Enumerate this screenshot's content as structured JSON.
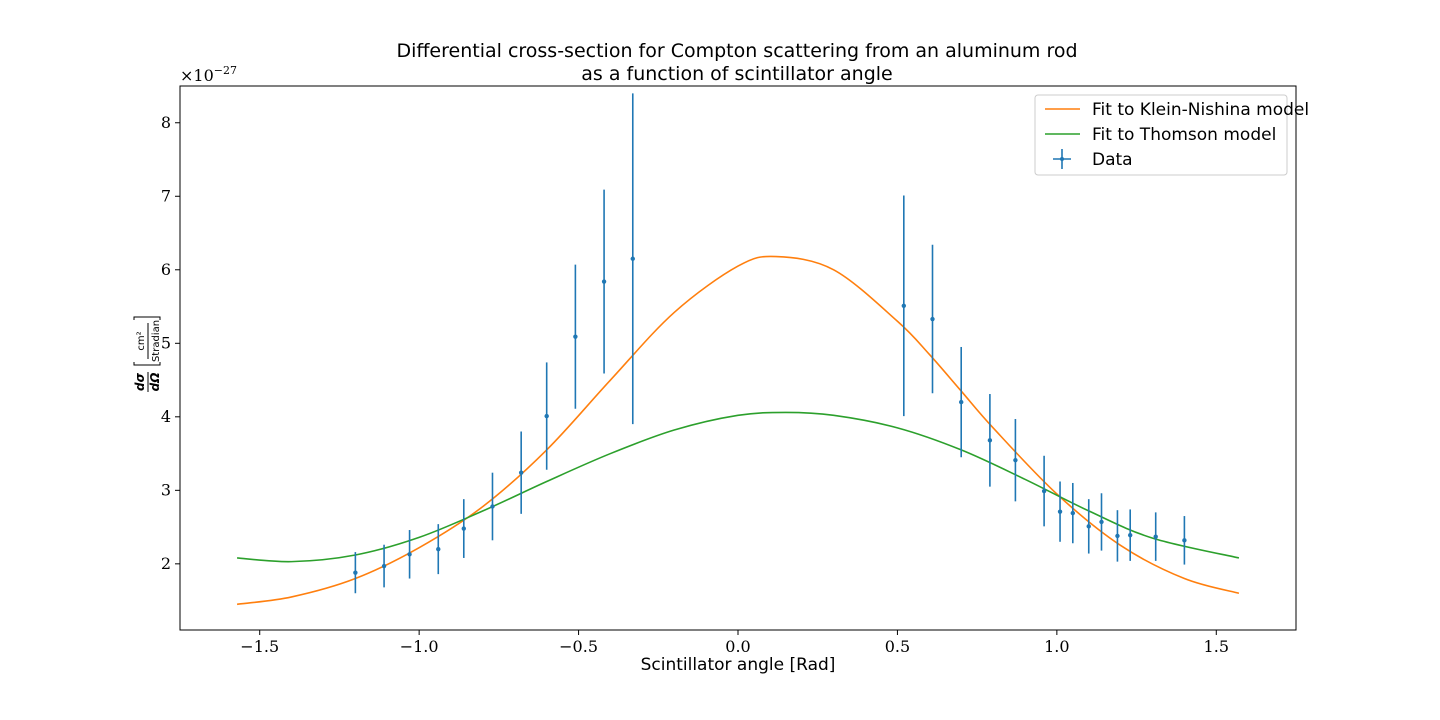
{
  "chart_data": {
    "type": "scatter",
    "title_line1": "Differential cross-section for Compton scattering from an aluminum rod",
    "title_line2": "as a function of scintillator angle",
    "xlabel": "Scintillator angle [Rad]",
    "ylabel_numerator": "dσ",
    "ylabel_denominator": "dΩ",
    "ylabel_unit_numerator": "cm²",
    "ylabel_unit_denominator": "Stradian",
    "y_multiplier_base": "×10",
    "y_multiplier_exponent": "−27",
    "xlim": [
      -1.75,
      1.75
    ],
    "ylim": [
      1.1,
      8.5
    ],
    "x_ticks": [
      -1.5,
      -1.0,
      -0.5,
      0.0,
      0.5,
      1.0,
      1.5
    ],
    "x_tick_labels": [
      "−1.5",
      "−1.0",
      "−0.5",
      "0.0",
      "0.5",
      "1.0",
      "1.5"
    ],
    "y_ticks": [
      2,
      3,
      4,
      5,
      6,
      7,
      8
    ],
    "y_tick_labels": [
      "2",
      "3",
      "4",
      "5",
      "6",
      "7",
      "8"
    ],
    "grid": false,
    "legend_position": "top-right",
    "legend": [
      {
        "label": "Fit to Klein-Nishina model",
        "color": "#ff7f0e",
        "kind": "line"
      },
      {
        "label": "Fit to Thomson model",
        "color": "#2ca02c",
        "kind": "line"
      },
      {
        "label": "Data",
        "color": "#1f77b4",
        "kind": "errorbar"
      }
    ],
    "series": [
      {
        "name": "Fit to Klein-Nishina model",
        "kind": "line",
        "color": "#ff7f0e",
        "x": [
          -1.571,
          -1.4,
          -1.2,
          -1.0,
          -0.8,
          -0.6,
          -0.4,
          -0.2,
          0.0,
          0.12,
          0.3,
          0.5,
          0.6,
          0.7,
          0.8,
          1.0,
          1.2,
          1.4,
          1.571
        ],
        "y": [
          1.45,
          1.55,
          1.8,
          2.22,
          2.78,
          3.55,
          4.5,
          5.42,
          6.05,
          6.18,
          6.0,
          5.3,
          4.85,
          4.35,
          3.85,
          2.95,
          2.25,
          1.8,
          1.6
        ]
      },
      {
        "name": "Fit to Thomson model",
        "kind": "line",
        "color": "#2ca02c",
        "x": [
          -1.571,
          -1.4,
          -1.2,
          -1.0,
          -0.8,
          -0.6,
          -0.4,
          -0.2,
          0.0,
          0.15,
          0.3,
          0.5,
          0.7,
          0.9,
          1.1,
          1.3,
          1.571
        ],
        "y": [
          2.08,
          2.03,
          2.12,
          2.36,
          2.72,
          3.12,
          3.5,
          3.82,
          4.02,
          4.06,
          4.02,
          3.85,
          3.55,
          3.15,
          2.72,
          2.35,
          2.08
        ]
      },
      {
        "name": "Data",
        "kind": "errorbar",
        "color": "#1f77b4",
        "x": [
          -1.2,
          -1.11,
          -1.03,
          -0.94,
          -0.86,
          -0.77,
          -0.68,
          -0.6,
          -0.51,
          -0.42,
          -0.33,
          0.52,
          0.61,
          0.7,
          0.79,
          0.87,
          0.96,
          1.01,
          1.05,
          1.1,
          1.14,
          1.19,
          1.23,
          1.31,
          1.4
        ],
        "y": [
          1.88,
          1.97,
          2.13,
          2.2,
          2.48,
          2.78,
          3.24,
          4.01,
          5.09,
          5.84,
          6.15,
          5.51,
          5.33,
          4.2,
          3.68,
          3.41,
          2.99,
          2.71,
          2.69,
          2.51,
          2.57,
          2.38,
          2.39,
          2.37,
          2.32
        ],
        "yerr": [
          0.28,
          0.29,
          0.33,
          0.34,
          0.4,
          0.46,
          0.56,
          0.73,
          0.98,
          1.25,
          2.25,
          1.5,
          1.01,
          0.75,
          0.63,
          0.56,
          0.48,
          0.41,
          0.41,
          0.37,
          0.39,
          0.35,
          0.35,
          0.33,
          0.33
        ]
      }
    ]
  }
}
